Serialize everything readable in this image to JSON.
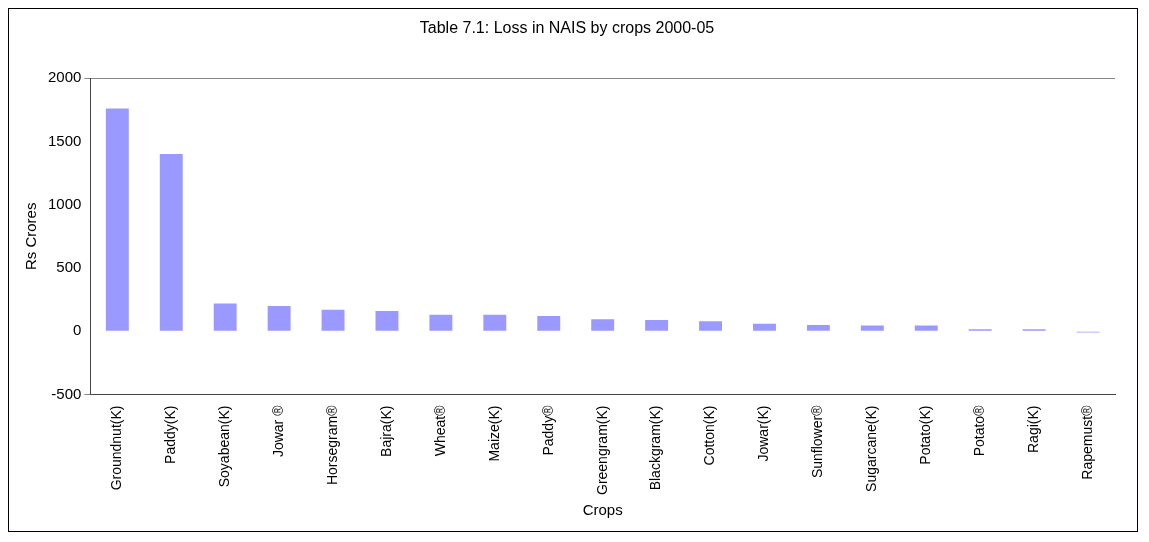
{
  "chart_data": {
    "type": "bar",
    "title": "Table 7.1: Loss in NAIS by crops 2000-05",
    "xlabel": "Crops",
    "ylabel": "Rs Crores",
    "categories": [
      "Groundnut(K)",
      "Paddy(K)",
      "Soyabean(K)",
      "Jowar ®",
      "Horsegram®",
      "Bajra(K)",
      "Wheat®",
      "Maize(K)",
      "Paddy®",
      "Greengram(K)",
      "Blackgram(K)",
      "Cotton(K)",
      "Jowar(K)",
      "Sunflower®",
      "Sugarcane(K)",
      "Potato(K)",
      "Potato®",
      "Ragi(K)",
      "Rapemust®"
    ],
    "values": [
      1760,
      1400,
      220,
      200,
      170,
      160,
      130,
      130,
      120,
      95,
      90,
      80,
      60,
      50,
      45,
      45,
      15,
      15,
      -10
    ],
    "color": "#9999ff",
    "ylim": [
      -500,
      2000
    ],
    "yticks": [
      -500,
      0,
      500,
      1000,
      1500,
      2000
    ],
    "grid": false,
    "legend": false
  }
}
